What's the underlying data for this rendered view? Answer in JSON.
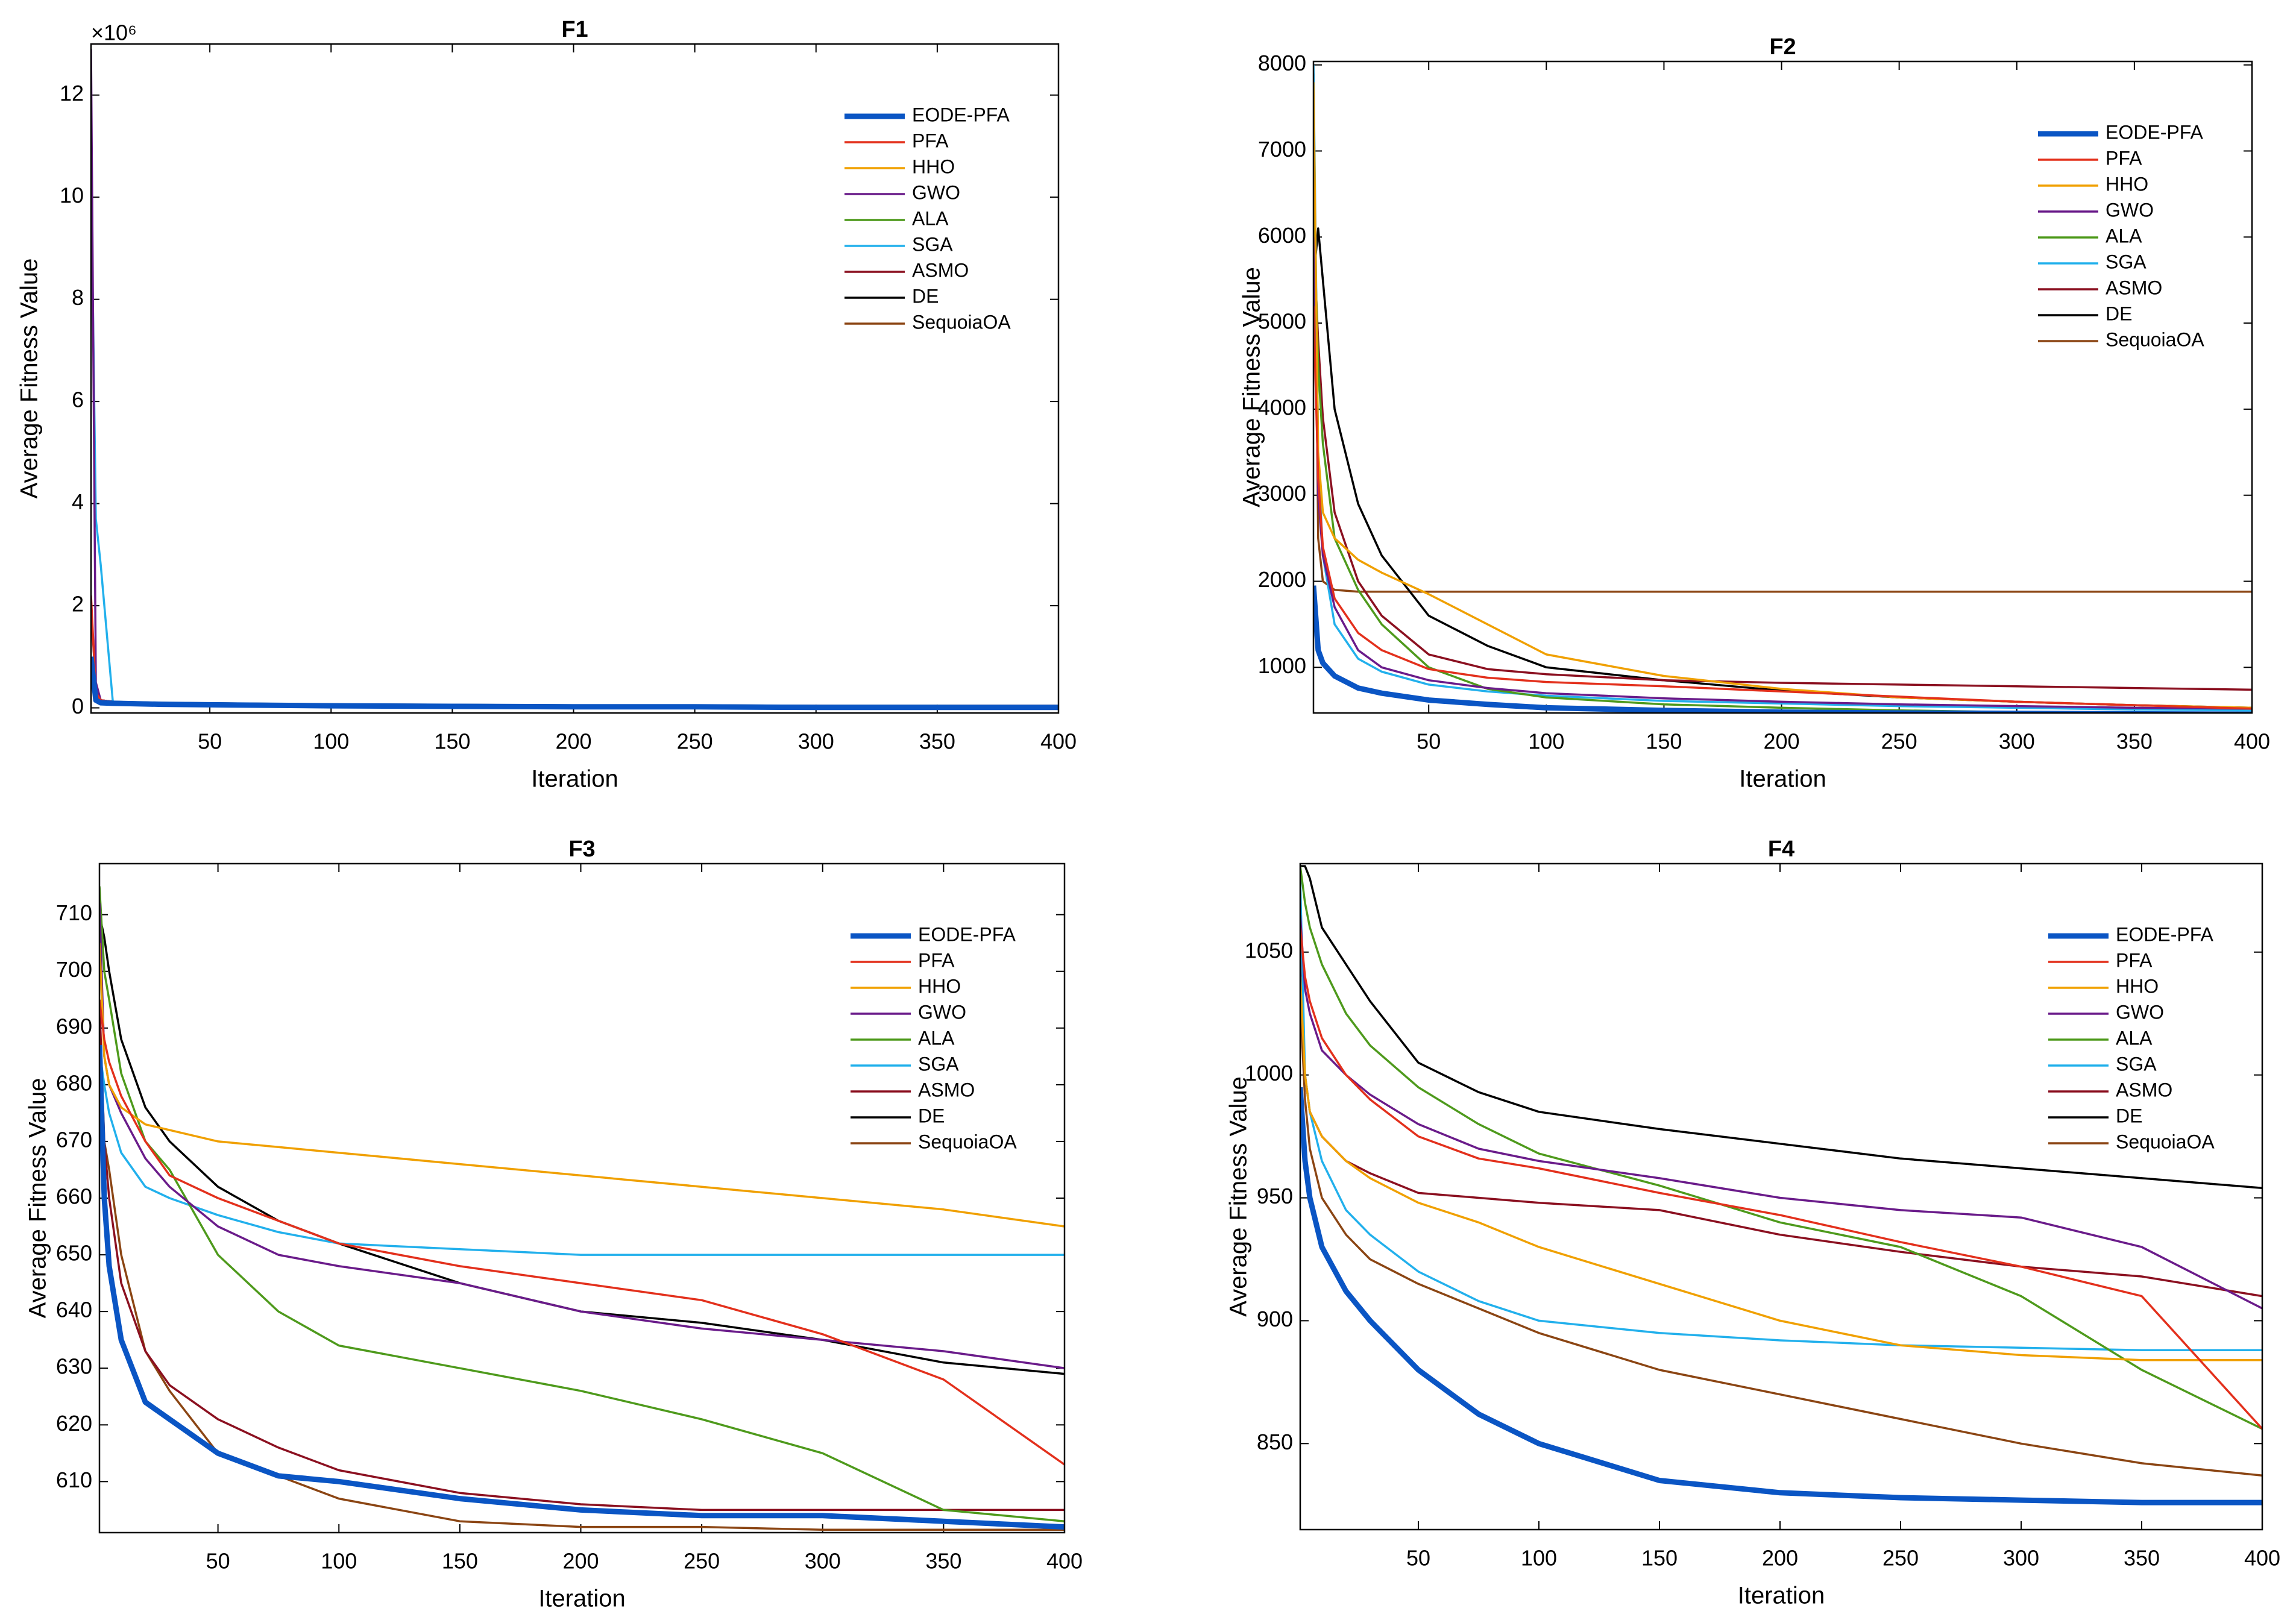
{
  "chart_data": [
    {
      "type": "line",
      "title": "F1",
      "xlabel": "Iteration",
      "ylabel": "Average Fitness Value",
      "y_multiplier": "×10⁶",
      "x": [
        1,
        3,
        5,
        10,
        20,
        30,
        50,
        75,
        100,
        150,
        200,
        250,
        300,
        350,
        400
      ],
      "xlim": [
        1,
        400
      ],
      "xticks": [
        50,
        100,
        150,
        200,
        250,
        300,
        350,
        400
      ],
      "ylim": [
        -0.1,
        13
      ],
      "yticks": [
        0,
        2,
        4,
        6,
        8,
        10,
        12
      ],
      "legend": "upper right",
      "series": [
        {
          "name": "EODE-PFA",
          "color": "#0a55c4",
          "values": [
            1.0,
            0.15,
            0.1,
            0.09,
            0.08,
            0.07,
            0.06,
            0.05,
            0.04,
            0.03,
            0.02,
            0.02,
            0.01,
            0.01,
            0.01
          ]
        },
        {
          "name": "PFA",
          "color": "#e3301c",
          "values": [
            2.2,
            0.3,
            0.15,
            0.12,
            0.1,
            0.09,
            0.08,
            0.07,
            0.06,
            0.05,
            0.04,
            0.04,
            0.03,
            0.03,
            0.03
          ]
        },
        {
          "name": "HHO",
          "color": "#f0a000",
          "values": [
            0.8,
            0.2,
            0.12,
            0.1,
            0.09,
            0.08,
            0.07,
            0.06,
            0.05,
            0.04,
            0.04,
            0.03,
            0.03,
            0.03,
            0.02
          ]
        },
        {
          "name": "GWO",
          "color": "#6a1b8a",
          "values": [
            12.9,
            0.5,
            0.15,
            0.12,
            0.1,
            0.09,
            0.08,
            0.07,
            0.06,
            0.05,
            0.05,
            0.04,
            0.04,
            0.03,
            0.03
          ]
        },
        {
          "name": "ALA",
          "color": "#4e9a1c",
          "values": [
            0.6,
            0.18,
            0.12,
            0.1,
            0.09,
            0.08,
            0.07,
            0.06,
            0.05,
            0.05,
            0.04,
            0.04,
            0.03,
            0.03,
            0.03
          ]
        },
        {
          "name": "SGA",
          "color": "#22b0ec",
          "values": [
            10.6,
            3.7,
            2.8,
            0.12,
            0.1,
            0.09,
            0.08,
            0.07,
            0.06,
            0.05,
            0.05,
            0.04,
            0.04,
            0.04,
            0.03
          ]
        },
        {
          "name": "ASMO",
          "color": "#8b1020",
          "values": [
            2.0,
            0.4,
            0.15,
            0.12,
            0.1,
            0.09,
            0.08,
            0.07,
            0.06,
            0.05,
            0.05,
            0.04,
            0.04,
            0.04,
            0.04
          ]
        },
        {
          "name": "DE",
          "color": "#000000",
          "values": [
            0.9,
            0.25,
            0.15,
            0.12,
            0.11,
            0.1,
            0.09,
            0.08,
            0.07,
            0.06,
            0.05,
            0.05,
            0.04,
            0.04,
            0.04
          ]
        },
        {
          "name": "SequoiaOA",
          "color": "#8b4513",
          "values": [
            0.5,
            0.15,
            0.1,
            0.09,
            0.08,
            0.07,
            0.06,
            0.05,
            0.05,
            0.04,
            0.04,
            0.03,
            0.03,
            0.03,
            0.03
          ]
        }
      ]
    },
    {
      "type": "line",
      "title": "F2",
      "xlabel": "Iteration",
      "ylabel": "Average Fitness Value",
      "x": [
        1,
        3,
        5,
        10,
        20,
        30,
        50,
        75,
        100,
        150,
        200,
        250,
        300,
        350,
        400
      ],
      "xlim": [
        1,
        400
      ],
      "xticks": [
        50,
        100,
        150,
        200,
        250,
        300,
        350,
        400
      ],
      "ylim": [
        470,
        8040
      ],
      "yticks": [
        1000,
        2000,
        3000,
        4000,
        5000,
        6000,
        7000,
        8000
      ],
      "legend": "upper right",
      "series": [
        {
          "name": "EODE-PFA",
          "color": "#0a55c4",
          "values": [
            1950,
            1200,
            1050,
            900,
            760,
            700,
            620,
            570,
            530,
            500,
            480,
            470,
            465,
            460,
            455
          ]
        },
        {
          "name": "PFA",
          "color": "#e3301c",
          "values": [
            5200,
            3200,
            2400,
            1800,
            1400,
            1200,
            980,
            880,
            830,
            780,
            720,
            660,
            600,
            560,
            520
          ]
        },
        {
          "name": "HHO",
          "color": "#f0a000",
          "values": [
            7800,
            3500,
            2800,
            2500,
            2250,
            2100,
            1850,
            1500,
            1150,
            900,
            750,
            650,
            600,
            560,
            530
          ]
        },
        {
          "name": "GWO",
          "color": "#6a1b8a",
          "values": [
            6000,
            3000,
            2300,
            1700,
            1200,
            1000,
            850,
            760,
            700,
            640,
            600,
            570,
            550,
            530,
            520
          ]
        },
        {
          "name": "ALA",
          "color": "#4e9a1c",
          "values": [
            6500,
            4500,
            3600,
            2500,
            1900,
            1500,
            1000,
            750,
            650,
            570,
            530,
            500,
            480,
            460,
            450
          ]
        },
        {
          "name": "SGA",
          "color": "#22b0ec",
          "values": [
            8000,
            3500,
            2300,
            1500,
            1100,
            950,
            800,
            720,
            670,
            610,
            580,
            550,
            530,
            510,
            500
          ]
        },
        {
          "name": "ASMO",
          "color": "#8b1020",
          "values": [
            6000,
            4800,
            3900,
            2800,
            2000,
            1600,
            1150,
            980,
            920,
            850,
            820,
            800,
            780,
            760,
            740
          ]
        },
        {
          "name": "DE",
          "color": "#000000",
          "values": [
            5500,
            6100,
            5500,
            4000,
            2900,
            2300,
            1600,
            1250,
            1000,
            850,
            730,
            650,
            600,
            560,
            530
          ]
        },
        {
          "name": "SequoiaOA",
          "color": "#8b4513",
          "values": [
            7900,
            2500,
            2000,
            1900,
            1880,
            1880,
            1880,
            1880,
            1880,
            1880,
            1880,
            1880,
            1880,
            1880,
            1880
          ]
        }
      ]
    },
    {
      "type": "line",
      "title": "F3",
      "xlabel": "Iteration",
      "ylabel": "Average Fitness Value",
      "x": [
        1,
        3,
        5,
        10,
        20,
        30,
        50,
        75,
        100,
        150,
        200,
        250,
        300,
        350,
        400
      ],
      "xlim": [
        1,
        400
      ],
      "xticks": [
        50,
        100,
        150,
        200,
        250,
        300,
        350,
        400
      ],
      "ylim": [
        601,
        719
      ],
      "yticks": [
        610,
        620,
        630,
        640,
        650,
        660,
        670,
        680,
        690,
        700,
        710
      ],
      "legend": "upper right",
      "series": [
        {
          "name": "EODE-PFA",
          "color": "#0a55c4",
          "values": [
            687,
            660,
            648,
            635,
            624,
            621,
            615,
            611,
            610,
            607,
            605,
            604,
            604,
            603,
            602
          ]
        },
        {
          "name": "PFA",
          "color": "#e3301c",
          "values": [
            695,
            688,
            684,
            678,
            670,
            664,
            660,
            656,
            652,
            648,
            645,
            642,
            636,
            628,
            613
          ]
        },
        {
          "name": "HHO",
          "color": "#f0a000",
          "values": [
            705,
            685,
            680,
            676,
            673,
            672,
            670,
            669,
            668,
            666,
            664,
            662,
            660,
            658,
            655
          ]
        },
        {
          "name": "GWO",
          "color": "#6a1b8a",
          "values": [
            712,
            685,
            680,
            675,
            667,
            662,
            655,
            650,
            648,
            645,
            640,
            637,
            635,
            633,
            630
          ]
        },
        {
          "name": "ALA",
          "color": "#4e9a1c",
          "values": [
            715,
            700,
            695,
            682,
            670,
            665,
            650,
            640,
            634,
            630,
            626,
            621,
            615,
            605,
            603
          ]
        },
        {
          "name": "SGA",
          "color": "#22b0ec",
          "values": [
            686,
            680,
            675,
            668,
            662,
            660,
            657,
            654,
            652,
            651,
            650,
            650,
            650,
            650,
            650
          ]
        },
        {
          "name": "ASMO",
          "color": "#8b1020",
          "values": [
            695,
            670,
            660,
            645,
            633,
            627,
            621,
            616,
            612,
            608,
            606,
            605,
            605,
            605,
            605
          ]
        },
        {
          "name": "DE",
          "color": "#000000",
          "values": [
            710,
            706,
            700,
            688,
            676,
            670,
            662,
            656,
            652,
            645,
            640,
            638,
            635,
            631,
            629
          ]
        },
        {
          "name": "SequoiaOA",
          "color": "#8b4513",
          "values": [
            680,
            670,
            665,
            650,
            633,
            626,
            615,
            611,
            607,
            603,
            602,
            602,
            601.5,
            601.5,
            601.5
          ]
        }
      ]
    },
    {
      "type": "line",
      "title": "F4",
      "xlabel": "Iteration",
      "ylabel": "Average Fitness Value",
      "x": [
        1,
        3,
        5,
        10,
        20,
        30,
        50,
        75,
        100,
        150,
        200,
        250,
        300,
        350,
        400
      ],
      "xlim": [
        1,
        400
      ],
      "xticks": [
        50,
        100,
        150,
        200,
        250,
        300,
        350,
        400
      ],
      "ylim": [
        815,
        1086
      ],
      "yticks": [
        850,
        900,
        950,
        1000,
        1050
      ],
      "legend": "upper right",
      "series": [
        {
          "name": "EODE-PFA",
          "color": "#0a55c4",
          "values": [
            995,
            965,
            950,
            930,
            912,
            900,
            880,
            862,
            850,
            835,
            830,
            828,
            827,
            826,
            826
          ]
        },
        {
          "name": "PFA",
          "color": "#e3301c",
          "values": [
            1060,
            1040,
            1030,
            1015,
            1000,
            990,
            975,
            966,
            962,
            952,
            943,
            932,
            922,
            910,
            856
          ]
        },
        {
          "name": "HHO",
          "color": "#f0a000",
          "values": [
            1040,
            1000,
            985,
            975,
            965,
            958,
            948,
            940,
            930,
            915,
            900,
            890,
            886,
            884,
            884
          ]
        },
        {
          "name": "GWO",
          "color": "#6a1b8a",
          "values": [
            1065,
            1035,
            1025,
            1010,
            1000,
            992,
            980,
            970,
            965,
            958,
            950,
            945,
            942,
            930,
            905
          ]
        },
        {
          "name": "ALA",
          "color": "#4e9a1c",
          "values": [
            1085,
            1070,
            1060,
            1045,
            1025,
            1012,
            995,
            980,
            968,
            955,
            940,
            930,
            910,
            880,
            856
          ]
        },
        {
          "name": "SGA",
          "color": "#22b0ec",
          "values": [
            1080,
            1000,
            985,
            965,
            945,
            935,
            920,
            908,
            900,
            895,
            892,
            890,
            889,
            888,
            888
          ]
        },
        {
          "name": "ASMO",
          "color": "#8b1020",
          "values": [
            1050,
            1000,
            985,
            975,
            965,
            960,
            952,
            950,
            948,
            945,
            935,
            928,
            922,
            918,
            910
          ]
        },
        {
          "name": "DE",
          "color": "#000000",
          "values": [
            1085,
            1085,
            1080,
            1060,
            1045,
            1030,
            1005,
            993,
            985,
            978,
            972,
            966,
            962,
            958,
            954
          ]
        },
        {
          "name": "SequoiaOA",
          "color": "#8b4513",
          "values": [
            1030,
            990,
            970,
            950,
            935,
            925,
            915,
            905,
            895,
            880,
            870,
            860,
            850,
            842,
            837
          ]
        }
      ]
    }
  ]
}
